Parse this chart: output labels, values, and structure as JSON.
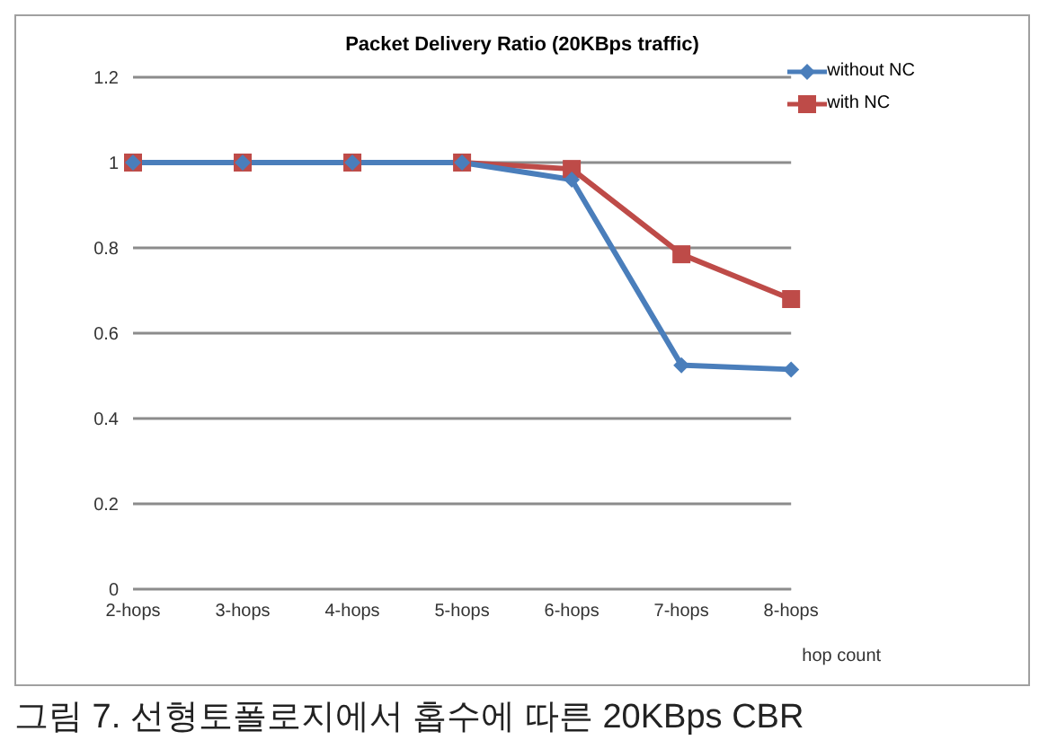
{
  "chart_data": {
    "type": "line",
    "title": "Packet Delivery Ratio (20KBps traffic)",
    "xlabel": "hop count",
    "categories": [
      "2-hops",
      "3-hops",
      "4-hops",
      "5-hops",
      "6-hops",
      "7-hops",
      "8-hops"
    ],
    "series": [
      {
        "name": "without NC",
        "color": "#4a7ebb",
        "marker": "diamond",
        "values": [
          1,
          1,
          1,
          1,
          0.96,
          0.525,
          0.515
        ]
      },
      {
        "name": "with NC",
        "color": "#be4b48",
        "marker": "square",
        "values": [
          1,
          1,
          1,
          1,
          0.985,
          0.785,
          0.68
        ]
      }
    ],
    "ylim": [
      0,
      1.2
    ],
    "yticks": [
      0,
      0.2,
      0.4,
      0.6,
      0.8,
      1,
      1.2
    ],
    "grid": "y",
    "legend": "top right",
    "annotations": [
      "그림 7. 선형토폴로지에서 홉수에 따른 20KBps CBR"
    ]
  }
}
